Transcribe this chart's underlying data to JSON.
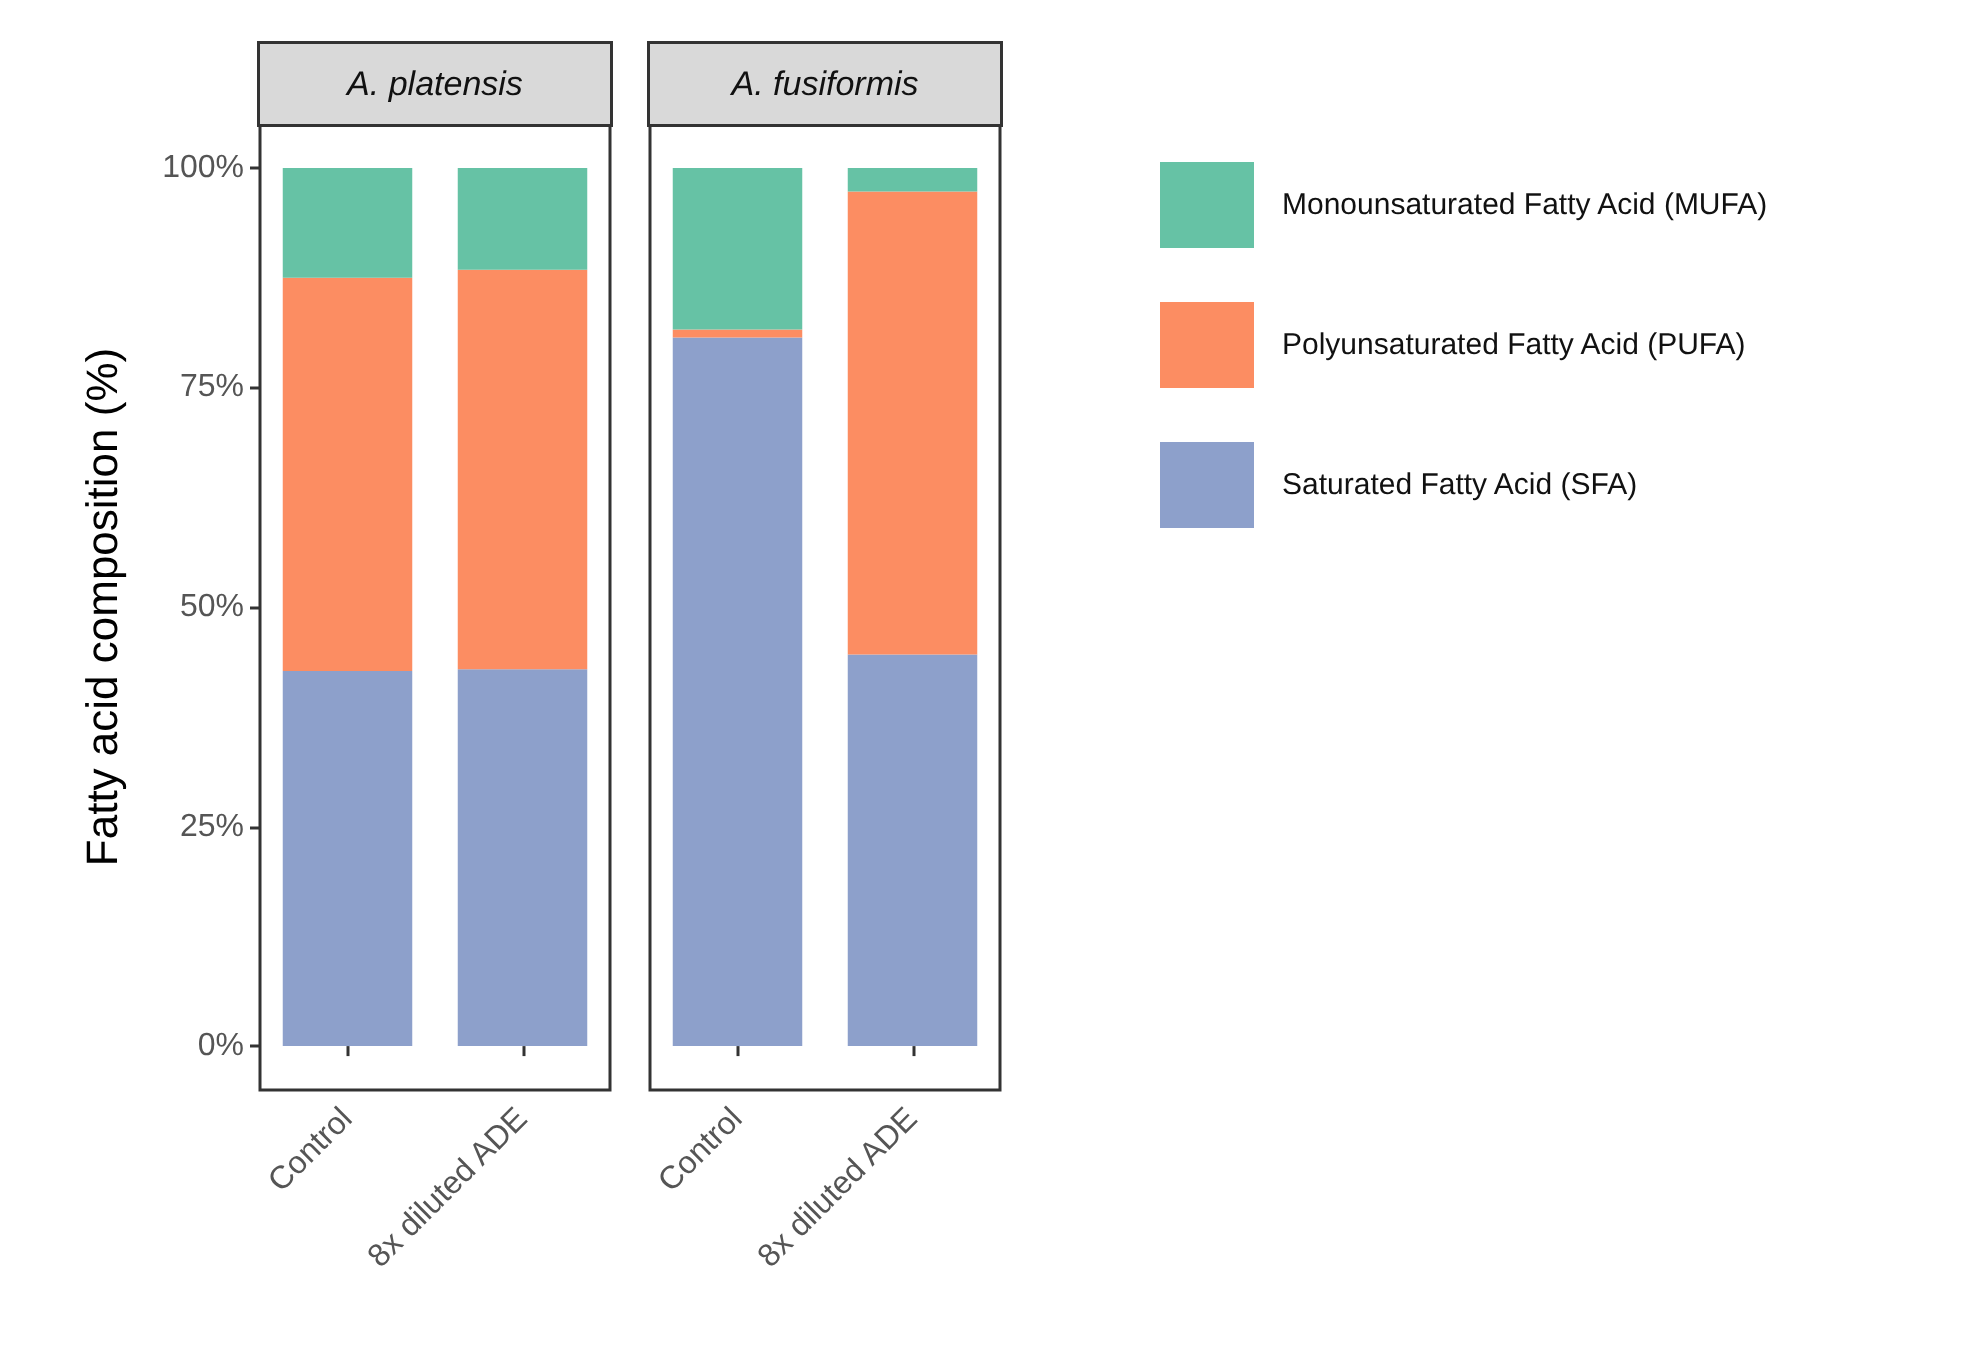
{
  "chart_data": [
    {
      "type": "bar",
      "title": "A. platensis",
      "ylabel": "Fatty acid composition (%)",
      "categories": [
        "Control",
        "8x diluted ADE"
      ],
      "stacked": true,
      "grid": false,
      "ylim": [
        -5,
        105
      ],
      "yticks": [
        {
          "value": 0,
          "label": "0%"
        },
        {
          "value": 25,
          "label": "25%"
        },
        {
          "value": 50,
          "label": "50%"
        },
        {
          "value": 75,
          "label": "75%"
        },
        {
          "value": 100,
          "label": "100%"
        }
      ],
      "series": [
        {
          "color": "#8da0cb",
          "values": [
            42.7,
            42.9
          ]
        },
        {
          "color": "#fc8d62",
          "values": [
            44.8,
            45.5
          ]
        },
        {
          "color": "#66c2a5",
          "values": [
            12.5,
            11.6
          ]
        }
      ]
    },
    {
      "type": "bar",
      "title": "A. fusiformis",
      "categories": [
        "Control",
        "8x diluted ADE"
      ],
      "stacked": true,
      "grid": false,
      "legend": "right",
      "tick_labels": "x",
      "ylim": [
        -5,
        105
      ],
      "series": [
        {
          "name": "Saturated Fatty Acid (SFA)",
          "color": "#8da0cb",
          "values": [
            80.7,
            44.6
          ]
        },
        {
          "name": "Polyunsaturated Fatty Acid (PUFA)",
          "color": "#fc8d62",
          "values": [
            0.9,
            52.7
          ]
        },
        {
          "name": "Monounsaturated Fatty Acid (MUFA)",
          "color": "#66c2a5",
          "values": [
            18.4,
            2.7
          ]
        }
      ]
    }
  ]
}
